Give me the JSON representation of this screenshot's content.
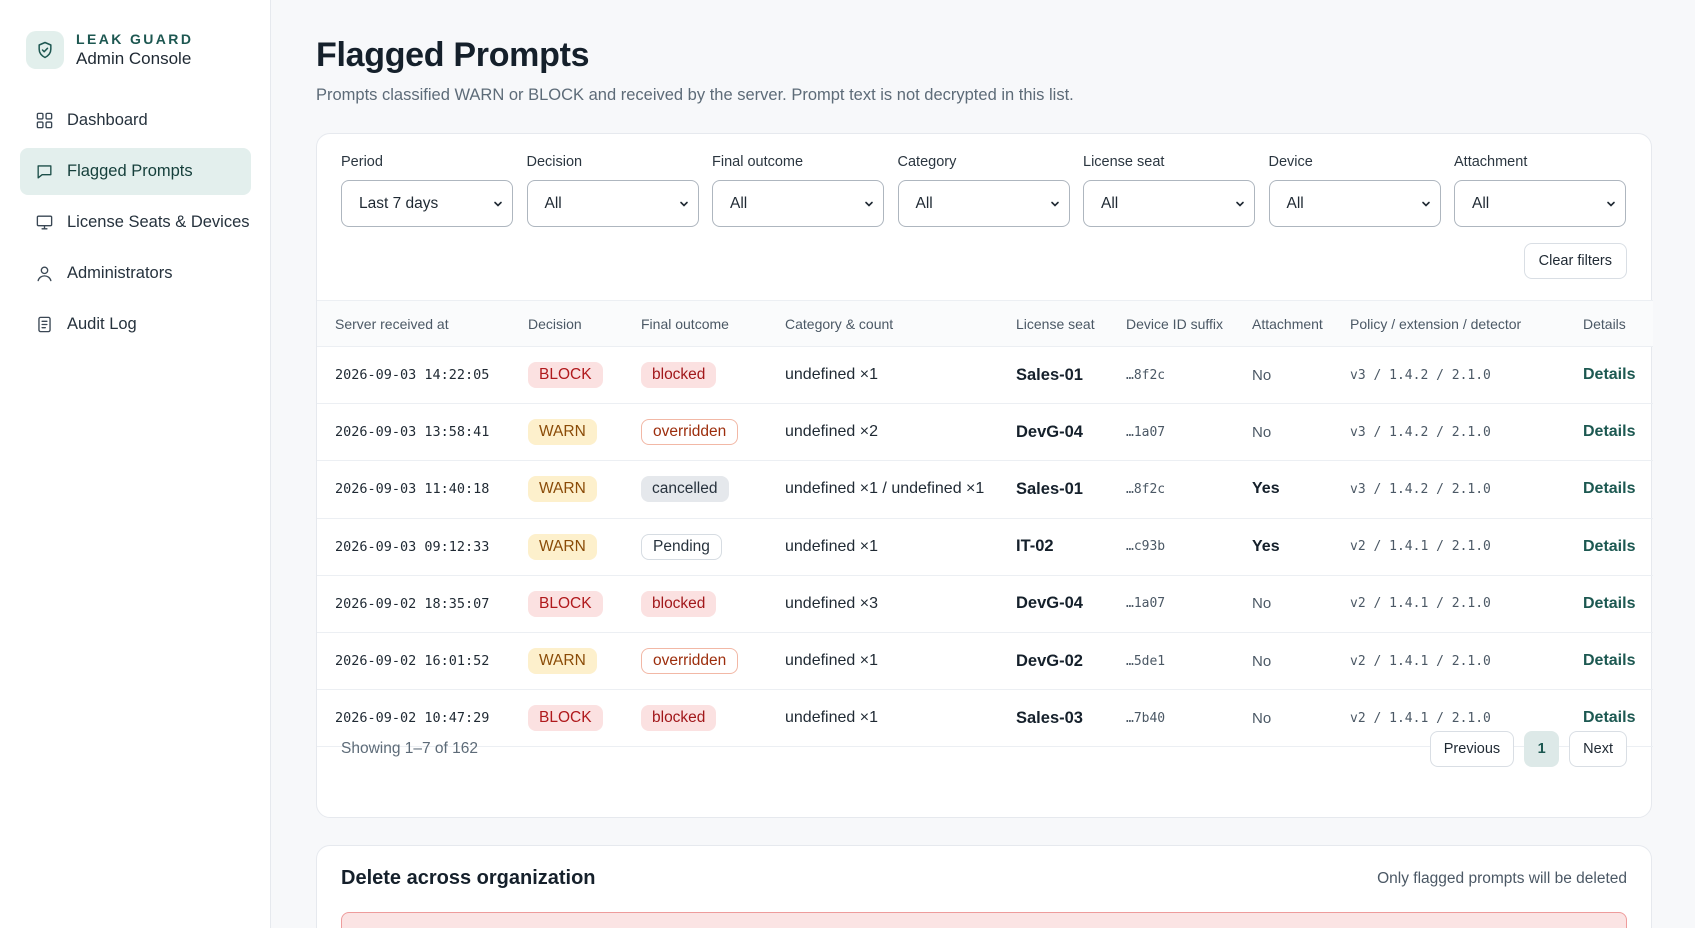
{
  "brand": {
    "name": "LEAK GUARD",
    "subtitle": "Admin Console"
  },
  "nav": [
    {
      "label": "Dashboard",
      "icon": "grid-icon",
      "active": false
    },
    {
      "label": "Flagged Prompts",
      "icon": "chat-icon",
      "active": true
    },
    {
      "label": "License Seats & Devices",
      "icon": "monitor-icon",
      "active": false
    },
    {
      "label": "Administrators",
      "icon": "user-icon",
      "active": false
    },
    {
      "label": "Audit Log",
      "icon": "document-icon",
      "active": false
    }
  ],
  "page": {
    "title": "Flagged Prompts",
    "description": "Prompts classified WARN or BLOCK and received by the server. Prompt text is not decrypted in this list."
  },
  "filters": [
    {
      "label": "Period",
      "value": "Last 7 days"
    },
    {
      "label": "Decision",
      "value": "All"
    },
    {
      "label": "Final outcome",
      "value": "All"
    },
    {
      "label": "Category",
      "value": "All"
    },
    {
      "label": "License seat",
      "value": "All"
    },
    {
      "label": "Device",
      "value": "All"
    },
    {
      "label": "Attachment",
      "value": "All"
    }
  ],
  "clear_filters_label": "Clear filters",
  "table": {
    "headers": [
      "Server received at",
      "Decision",
      "Final outcome",
      "Category & count",
      "License seat",
      "Device ID suffix",
      "Attachment",
      "Policy / extension / detector",
      "Details"
    ],
    "rows": [
      {
        "received": "2026-09-03 14:22:05",
        "decision": "BLOCK",
        "outcome": "blocked",
        "category": "undefined ×1",
        "seat": "Sales-01",
        "device": "…8f2c",
        "attachment": "No",
        "policy": "v3 / 1.4.2 / 2.1.0",
        "details": "Details"
      },
      {
        "received": "2026-09-03 13:58:41",
        "decision": "WARN",
        "outcome": "overridden",
        "category": "undefined ×2",
        "seat": "DevG-04",
        "device": "…1a07",
        "attachment": "No",
        "policy": "v3 / 1.4.2 / 2.1.0",
        "details": "Details"
      },
      {
        "received": "2026-09-03 11:40:18",
        "decision": "WARN",
        "outcome": "cancelled",
        "category": "undefined ×1 / undefined ×1",
        "seat": "Sales-01",
        "device": "…8f2c",
        "attachment": "Yes",
        "policy": "v3 / 1.4.2 / 2.1.0",
        "details": "Details"
      },
      {
        "received": "2026-09-03 09:12:33",
        "decision": "WARN",
        "outcome": "Pending",
        "category": "undefined ×1",
        "seat": "IT-02",
        "device": "…c93b",
        "attachment": "Yes",
        "policy": "v2 / 1.4.1 / 2.1.0",
        "details": "Details"
      },
      {
        "received": "2026-09-02 18:35:07",
        "decision": "BLOCK",
        "outcome": "blocked",
        "category": "undefined ×3",
        "seat": "DevG-04",
        "device": "…1a07",
        "attachment": "No",
        "policy": "v2 / 1.4.1 / 2.1.0",
        "details": "Details"
      },
      {
        "received": "2026-09-02 16:01:52",
        "decision": "WARN",
        "outcome": "overridden",
        "category": "undefined ×1",
        "seat": "DevG-02",
        "device": "…5de1",
        "attachment": "No",
        "policy": "v2 / 1.4.1 / 2.1.0",
        "details": "Details"
      },
      {
        "received": "2026-09-02 10:47:29",
        "decision": "BLOCK",
        "outcome": "blocked",
        "category": "undefined ×1",
        "seat": "Sales-03",
        "device": "…7b40",
        "attachment": "No",
        "policy": "v2 / 1.4.1 / 2.1.0",
        "details": "Details"
      }
    ]
  },
  "pagination": {
    "showing": "Showing 1–7 of 162",
    "previous": "Previous",
    "current": "1",
    "next": "Next"
  },
  "delete_section": {
    "title": "Delete across organization",
    "note": "Only flagged prompts will be deleted"
  },
  "colors": {
    "accent": "#1c5851",
    "active_nav_bg": "#e3efed",
    "block": "#b0191c",
    "warn": "#8a4b07"
  }
}
